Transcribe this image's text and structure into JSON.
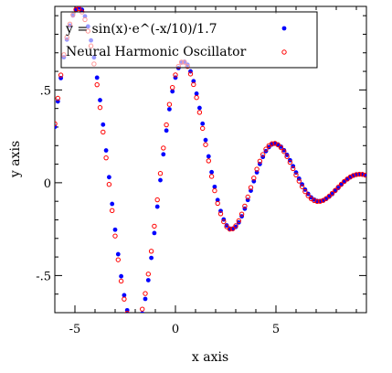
{
  "chart_data": {
    "type": "scatter",
    "xlabel": "x axis",
    "ylabel": "y axis",
    "xlim": [
      -6,
      9.5
    ],
    "ylim": [
      -0.7,
      0.95
    ],
    "grid": false,
    "legend_position": "top-left",
    "x_ticks": [
      {
        "value": -5,
        "label": "-5"
      },
      {
        "value": 0,
        "label": "0"
      },
      {
        "value": 5,
        "label": "5"
      }
    ],
    "y_ticks": [
      {
        "value": 0.5,
        "label": ".5"
      },
      {
        "value": 0,
        "label": "0"
      },
      {
        "value": -0.5,
        "label": "-.5"
      }
    ],
    "series": [
      {
        "name": "y = sin(x)·e^(-x/10)/1.7",
        "marker": "filled-circle",
        "color": "#0000ff",
        "x": [
          -6.0,
          -5.85,
          -5.7,
          -5.55,
          -5.4,
          -5.25,
          -5.1,
          -4.95,
          -4.8,
          -4.65,
          -4.5,
          -4.35,
          -4.2,
          -4.05,
          -3.9,
          -3.75,
          -3.6,
          -3.45,
          -3.3,
          -3.15,
          -3.0,
          -2.85,
          -2.7,
          -2.55,
          -2.4,
          -2.25,
          -2.1,
          -1.95,
          -1.8,
          -1.65,
          -1.5,
          -1.35,
          -1.2,
          -1.05,
          -0.9,
          -0.75,
          -0.6,
          -0.45,
          -0.3,
          -0.15,
          0.0,
          0.15,
          0.3,
          0.45,
          0.6,
          0.75,
          0.9,
          1.05,
          1.2,
          1.35,
          1.5,
          1.65,
          1.8,
          1.95,
          2.1,
          2.25,
          2.4,
          2.55,
          2.7,
          2.85,
          3.0,
          3.15,
          3.3,
          3.45,
          3.6,
          3.75,
          3.9,
          4.05,
          4.2,
          4.35,
          4.5,
          4.65,
          4.8,
          4.95,
          5.1,
          5.25,
          5.4,
          5.55,
          5.7,
          5.85,
          6.0,
          6.15,
          6.3,
          6.45,
          6.6,
          6.75,
          6.9,
          7.05,
          7.2,
          7.35,
          7.5,
          7.65,
          7.8,
          7.95,
          8.1,
          8.25,
          8.4,
          8.55,
          8.7,
          8.85,
          9.0,
          9.15,
          9.3,
          9.45
        ],
        "y": [
          0.301,
          0.438,
          0.564,
          0.676,
          0.771,
          0.847,
          0.901,
          0.934,
          0.944,
          0.932,
          0.897,
          0.842,
          0.767,
          0.675,
          0.566,
          0.445,
          0.313,
          0.174,
          0.03,
          -0.114,
          -0.253,
          -0.385,
          -0.504,
          -0.606,
          -0.687,
          -0.745,
          -0.776,
          -0.78,
          -0.756,
          -0.704,
          -0.626,
          -0.525,
          -0.405,
          -0.271,
          -0.129,
          0.014,
          0.153,
          0.281,
          0.396,
          0.492,
          0.566,
          0.618,
          0.647,
          0.652,
          0.636,
          0.6,
          0.547,
          0.48,
          0.403,
          0.318,
          0.23,
          0.142,
          0.057,
          -0.022,
          -0.093,
          -0.152,
          -0.198,
          -0.23,
          -0.247,
          -0.249,
          -0.238,
          -0.214,
          -0.181,
          -0.14,
          -0.093,
          -0.043,
          0.008,
          0.056,
          0.101,
          0.139,
          0.17,
          0.192,
          0.206,
          0.21,
          0.206,
          0.194,
          0.175,
          0.15,
          0.121,
          0.089,
          0.055,
          0.022,
          -0.009,
          -0.037,
          -0.06,
          -0.079,
          -0.091,
          -0.098,
          -0.099,
          -0.095,
          -0.087,
          -0.075,
          -0.061,
          -0.044,
          -0.028,
          -0.011,
          0.005,
          0.018,
          0.029,
          0.038,
          0.043,
          0.045,
          0.045,
          0.042
        ]
      },
      {
        "name": "Neural Harmonic Oscillator",
        "marker": "open-circle",
        "color": "#ff0000",
        "x": [
          -6.0,
          -5.85,
          -5.7,
          -5.55,
          -5.4,
          -5.25,
          -5.1,
          -4.95,
          -4.8,
          -4.65,
          -4.5,
          -4.35,
          -4.2,
          -4.05,
          -3.9,
          -3.75,
          -3.6,
          -3.45,
          -3.3,
          -3.15,
          -3.0,
          -2.85,
          -2.7,
          -2.55,
          -2.4,
          -2.25,
          -2.1,
          -1.95,
          -1.8,
          -1.65,
          -1.5,
          -1.35,
          -1.2,
          -1.05,
          -0.9,
          -0.75,
          -0.6,
          -0.45,
          -0.3,
          -0.15,
          0.0,
          0.15,
          0.3,
          0.45,
          0.6,
          0.75,
          0.9,
          1.05,
          1.2,
          1.35,
          1.5,
          1.65,
          1.8,
          1.95,
          2.1,
          2.25,
          2.4,
          2.55,
          2.7,
          2.85,
          3.0,
          3.15,
          3.3,
          3.45,
          3.6,
          3.75,
          3.9,
          4.05,
          4.2,
          4.35,
          4.5,
          4.65,
          4.8,
          4.95,
          5.1,
          5.25,
          5.4,
          5.55,
          5.7,
          5.85,
          6.0,
          6.15,
          6.3,
          6.45,
          6.6,
          6.75,
          6.9,
          7.05,
          7.2,
          7.35,
          7.5,
          7.65,
          7.8,
          7.95,
          8.1,
          8.25,
          8.4,
          8.55,
          8.7,
          8.85,
          9.0,
          9.15,
          9.3,
          9.45
        ],
        "y": [
          0.318,
          0.455,
          0.58,
          0.69,
          0.783,
          0.855,
          0.905,
          0.933,
          0.938,
          0.92,
          0.879,
          0.817,
          0.737,
          0.64,
          0.528,
          0.405,
          0.273,
          0.134,
          -0.009,
          -0.15,
          -0.287,
          -0.415,
          -0.53,
          -0.627,
          -0.703,
          -0.754,
          -0.778,
          -0.773,
          -0.74,
          -0.681,
          -0.597,
          -0.492,
          -0.369,
          -0.234,
          -0.092,
          0.05,
          0.187,
          0.312,
          0.422,
          0.513,
          0.581,
          0.627,
          0.65,
          0.649,
          0.627,
          0.586,
          0.529,
          0.459,
          0.379,
          0.293,
          0.205,
          0.118,
          0.034,
          -0.043,
          -0.111,
          -0.167,
          -0.21,
          -0.237,
          -0.25,
          -0.248,
          -0.232,
          -0.205,
          -0.169,
          -0.126,
          -0.077,
          -0.026,
          0.025,
          0.073,
          0.116,
          0.152,
          0.181,
          0.2,
          0.21,
          0.212,
          0.204,
          0.189,
          0.168,
          0.141,
          0.11,
          0.076,
          0.042,
          0.009,
          -0.021,
          -0.048,
          -0.07,
          -0.086,
          -0.096,
          -0.101,
          -0.1,
          -0.095,
          -0.085,
          -0.072,
          -0.057,
          -0.041,
          -0.024,
          -0.008,
          0.007,
          0.02,
          0.031,
          0.039,
          0.044,
          0.046,
          0.045,
          0.041
        ]
      }
    ]
  }
}
